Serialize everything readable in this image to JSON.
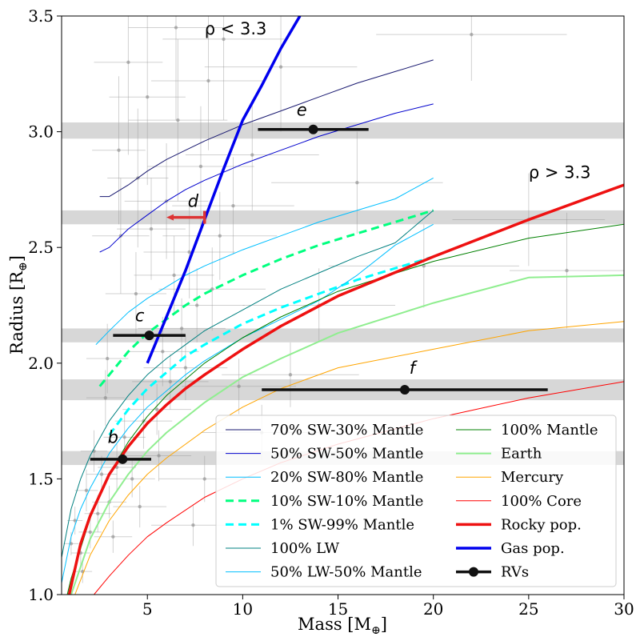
{
  "chart_data": {
    "type": "line",
    "xlabel": "Mass [M",
    "xlabel_sub": "⊕",
    "xlabel_end": "]",
    "ylabel": "Radius [R",
    "ylabel_sub": "⊕",
    "ylabel_end": "]",
    "xlim": [
      0.5,
      30
    ],
    "ylim": [
      1.0,
      3.5
    ],
    "xticks": [
      5,
      10,
      15,
      20,
      25,
      30
    ],
    "yticks": [
      1.0,
      1.5,
      2.0,
      2.5,
      3.0,
      3.5
    ],
    "grid": false,
    "legend_position": "lower-right",
    "annotations": [
      {
        "text": "ρ < 3.3",
        "x": 8.0,
        "y": 3.42
      },
      {
        "text": "ρ > 3.3",
        "x": 25.0,
        "y": 2.8
      }
    ],
    "observed_radius_bands": [
      {
        "y_low": 2.97,
        "y_high": 3.04
      },
      {
        "y_low": 2.6,
        "y_high": 2.66
      },
      {
        "y_low": 2.09,
        "y_high": 2.15
      },
      {
        "y_low": 1.84,
        "y_high": 1.93
      },
      {
        "y_low": 1.56,
        "y_high": 1.62
      }
    ],
    "series": [
      {
        "name": "70% SW-30% Mantle",
        "color": "#191970",
        "width": 1,
        "dash": "",
        "x": [
          2.5,
          3,
          4,
          5,
          6,
          7,
          8,
          10,
          12,
          14,
          16,
          18,
          20
        ],
        "y": [
          2.72,
          2.72,
          2.77,
          2.83,
          2.88,
          2.92,
          2.96,
          3.03,
          3.09,
          3.15,
          3.21,
          3.26,
          3.31
        ]
      },
      {
        "name": "50% SW-50% Mantle",
        "color": "#0000cd",
        "width": 1,
        "dash": "",
        "x": [
          2.5,
          3,
          4,
          5,
          6,
          7,
          8,
          10,
          12,
          14,
          16,
          18,
          20
        ],
        "y": [
          2.48,
          2.5,
          2.58,
          2.64,
          2.7,
          2.75,
          2.79,
          2.86,
          2.92,
          2.98,
          3.03,
          3.08,
          3.12
        ]
      },
      {
        "name": "20% SW-80% Mantle",
        "color": "#00bfff",
        "width": 1,
        "dash": "",
        "x": [
          2.3,
          3,
          4,
          5,
          6,
          7,
          8,
          10,
          12,
          14,
          16,
          18,
          20
        ],
        "y": [
          2.08,
          2.14,
          2.22,
          2.28,
          2.33,
          2.38,
          2.42,
          2.49,
          2.55,
          2.61,
          2.66,
          2.71,
          2.8
        ]
      },
      {
        "name": "10% SW-10% Mantle",
        "color": "#00ff7f",
        "width": 3,
        "dash": "10,6",
        "x": [
          2.5,
          3,
          4,
          5,
          6,
          7,
          8,
          10,
          12,
          14,
          16,
          18,
          20
        ],
        "y": [
          1.9,
          1.95,
          2.05,
          2.13,
          2.19,
          2.25,
          2.3,
          2.38,
          2.45,
          2.51,
          2.56,
          2.61,
          2.66
        ]
      },
      {
        "name": "1% SW-99% Mantle",
        "color": "#00ffff",
        "width": 3,
        "dash": "10,6",
        "x": [
          3,
          4,
          5,
          6,
          7,
          8,
          10,
          12,
          14,
          16,
          18,
          20
        ],
        "y": [
          1.69,
          1.8,
          1.89,
          1.96,
          2.03,
          2.08,
          2.17,
          2.24,
          2.3,
          2.36,
          2.41,
          2.46
        ]
      },
      {
        "name": "100% LW",
        "color": "#008080",
        "width": 1,
        "dash": "",
        "x": [
          0.5,
          1,
          1.5,
          2,
          3,
          4,
          5,
          6,
          7,
          8,
          10,
          12,
          14,
          16,
          18,
          20
        ],
        "y": [
          1.16,
          1.37,
          1.5,
          1.6,
          1.75,
          1.86,
          1.95,
          2.02,
          2.08,
          2.14,
          2.23,
          2.32,
          2.39,
          2.46,
          2.52,
          2.66
        ]
      },
      {
        "name": "50% LW-50% Mantle",
        "color": "#00bfff",
        "width": 1,
        "dash": "",
        "x": [
          0.5,
          1,
          1.5,
          2,
          3,
          4,
          5,
          6,
          7,
          8,
          10,
          12,
          14,
          16,
          18,
          20
        ],
        "y": [
          1.05,
          1.25,
          1.37,
          1.46,
          1.61,
          1.72,
          1.81,
          1.88,
          1.95,
          2.01,
          2.11,
          2.19,
          2.27,
          2.38,
          2.51,
          2.6
        ]
      },
      {
        "name": "100% Mantle",
        "color": "#008000",
        "width": 1,
        "dash": "",
        "x": [
          0.8,
          1,
          2,
          3,
          4,
          5,
          6,
          8,
          10,
          12,
          15,
          20,
          25,
          30
        ],
        "y": [
          1.0,
          1.07,
          1.33,
          1.52,
          1.66,
          1.77,
          1.86,
          2.0,
          2.11,
          2.2,
          2.31,
          2.44,
          2.54,
          2.6
        ]
      },
      {
        "name": "Earth",
        "color": "#90ee90",
        "width": 2,
        "dash": "",
        "x": [
          1.0,
          2,
          3,
          4,
          5,
          6,
          8,
          10,
          12,
          15,
          20,
          25,
          30
        ],
        "y": [
          1.0,
          1.24,
          1.4,
          1.52,
          1.62,
          1.7,
          1.83,
          1.94,
          2.02,
          2.13,
          2.26,
          2.37,
          2.38
        ]
      },
      {
        "name": "Mercury",
        "color": "#ffa500",
        "width": 1,
        "dash": "",
        "x": [
          1.2,
          2,
          3,
          4,
          5,
          6,
          8,
          10,
          12,
          15,
          20,
          25,
          30
        ],
        "y": [
          1.0,
          1.17,
          1.32,
          1.43,
          1.52,
          1.59,
          1.71,
          1.81,
          1.89,
          1.98,
          2.06,
          2.14,
          2.18
        ]
      },
      {
        "name": "100% Core",
        "color": "#ff0000",
        "width": 1,
        "dash": "",
        "x": [
          2.2,
          3,
          4,
          5,
          6,
          8,
          10,
          12,
          15,
          20,
          25,
          30
        ],
        "y": [
          1.0,
          1.08,
          1.17,
          1.25,
          1.31,
          1.42,
          1.5,
          1.57,
          1.65,
          1.76,
          1.85,
          1.92
        ]
      },
      {
        "name": "Rocky pop.",
        "color": "#ee1111",
        "width": 3.5,
        "dash": "",
        "x": [
          0.9,
          1.5,
          2,
          3,
          4,
          5,
          6,
          7,
          8,
          10,
          12,
          15,
          20,
          25,
          30
        ],
        "y": [
          1.0,
          1.22,
          1.34,
          1.52,
          1.64,
          1.74,
          1.82,
          1.89,
          1.95,
          2.06,
          2.16,
          2.29,
          2.46,
          2.62,
          2.77
        ]
      },
      {
        "name": "Gas pop.",
        "color": "#0000ee",
        "width": 3.5,
        "dash": "",
        "x": [
          5.0,
          6.0,
          7.0,
          8.0,
          9.0,
          10.0,
          11.0,
          12.0,
          13.0
        ],
        "y": [
          2.0,
          2.2,
          2.4,
          2.62,
          2.84,
          3.05,
          3.2,
          3.36,
          3.5
        ]
      }
    ],
    "rv_points": [
      {
        "label": "b",
        "x": 3.7,
        "xerr_low": 2.0,
        "xerr_high": 5.2,
        "y": 1.585,
        "label_dx": -0.5,
        "label_dy": 0.07
      },
      {
        "label": "c",
        "x": 5.1,
        "xerr_low": 3.2,
        "xerr_high": 7.0,
        "y": 2.12,
        "label_dx": -0.5,
        "label_dy": 0.06
      },
      {
        "label": "e",
        "x": 13.7,
        "xerr_low": 10.8,
        "xerr_high": 16.6,
        "y": 3.01,
        "label_dx": -0.6,
        "label_dy": 0.06
      },
      {
        "label": "f",
        "x": 18.5,
        "xerr_low": 11.0,
        "xerr_high": 26.0,
        "y": 1.885,
        "label_dx": 0.4,
        "label_dy": 0.07
      }
    ],
    "upper_limit": {
      "label": "d",
      "x": 8.0,
      "x_arrow_to": 6.0,
      "y": 2.63,
      "color": "#dd3333"
    },
    "rv_legend": "RVs",
    "rv_legend_color": "#111111",
    "background_sample": [
      {
        "x": 1.5,
        "y": 1.18,
        "ex": 0.5,
        "ey": 0.06
      },
      {
        "x": 2.0,
        "y": 1.27,
        "ex": 0.6,
        "ey": 0.07
      },
      {
        "x": 2.4,
        "y": 1.35,
        "ex": 0.7,
        "ey": 0.08
      },
      {
        "x": 1.8,
        "y": 1.45,
        "ex": 0.6,
        "ey": 0.09
      },
      {
        "x": 3.0,
        "y": 1.4,
        "ex": 0.9,
        "ey": 0.07
      },
      {
        "x": 2.6,
        "y": 1.52,
        "ex": 0.8,
        "ey": 0.08
      },
      {
        "x": 3.4,
        "y": 1.55,
        "ex": 1.0,
        "ey": 0.1
      },
      {
        "x": 4.2,
        "y": 1.5,
        "ex": 1.2,
        "ey": 0.08
      },
      {
        "x": 1.2,
        "y": 1.32,
        "ex": 0.4,
        "ey": 0.06
      },
      {
        "x": 2.2,
        "y": 1.62,
        "ex": 0.7,
        "ey": 0.09
      },
      {
        "x": 3.8,
        "y": 1.68,
        "ex": 1.1,
        "ey": 0.1
      },
      {
        "x": 4.8,
        "y": 1.75,
        "ex": 1.5,
        "ey": 0.12
      },
      {
        "x": 5.5,
        "y": 1.8,
        "ex": 1.8,
        "ey": 0.11
      },
      {
        "x": 6.2,
        "y": 1.92,
        "ex": 2.0,
        "ey": 0.12
      },
      {
        "x": 7.0,
        "y": 1.98,
        "ex": 2.2,
        "ey": 0.14
      },
      {
        "x": 5.8,
        "y": 2.05,
        "ex": 1.9,
        "ey": 0.15
      },
      {
        "x": 6.8,
        "y": 2.15,
        "ex": 2.3,
        "ey": 0.13
      },
      {
        "x": 7.6,
        "y": 2.25,
        "ex": 2.5,
        "ey": 0.16
      },
      {
        "x": 8.4,
        "y": 2.32,
        "ex": 2.8,
        "ey": 0.18
      },
      {
        "x": 6.4,
        "y": 2.38,
        "ex": 2.1,
        "ey": 0.17
      },
      {
        "x": 7.2,
        "y": 2.48,
        "ex": 2.4,
        "ey": 0.2
      },
      {
        "x": 5.2,
        "y": 2.58,
        "ex": 1.8,
        "ey": 0.22
      },
      {
        "x": 8.8,
        "y": 2.55,
        "ex": 3.0,
        "ey": 0.19
      },
      {
        "x": 6.0,
        "y": 2.7,
        "ex": 2.2,
        "ey": 0.25
      },
      {
        "x": 9.5,
        "y": 2.68,
        "ex": 3.2,
        "ey": 0.21
      },
      {
        "x": 4.5,
        "y": 2.8,
        "ex": 1.6,
        "ey": 0.3
      },
      {
        "x": 7.8,
        "y": 2.85,
        "ex": 2.8,
        "ey": 0.26
      },
      {
        "x": 3.5,
        "y": 2.92,
        "ex": 1.4,
        "ey": 0.32
      },
      {
        "x": 10.5,
        "y": 2.9,
        "ex": 3.5,
        "ey": 0.24
      },
      {
        "x": 6.6,
        "y": 3.05,
        "ex": 2.6,
        "ey": 0.35
      },
      {
        "x": 5.0,
        "y": 3.15,
        "ex": 2.0,
        "ey": 0.38
      },
      {
        "x": 8.2,
        "y": 3.22,
        "ex": 3.0,
        "ey": 0.3
      },
      {
        "x": 4.0,
        "y": 3.3,
        "ex": 1.8,
        "ey": 0.4
      },
      {
        "x": 12.0,
        "y": 3.28,
        "ex": 4.0,
        "ey": 0.28
      },
      {
        "x": 9.0,
        "y": 3.4,
        "ex": 3.2,
        "ey": 0.35
      },
      {
        "x": 6.5,
        "y": 3.45,
        "ex": 2.5,
        "ey": 0.4
      },
      {
        "x": 22.0,
        "y": 3.42,
        "ex": 5.0,
        "ey": 0.2
      },
      {
        "x": 16.0,
        "y": 2.78,
        "ex": 4.5,
        "ey": 0.22
      },
      {
        "x": 19.5,
        "y": 2.42,
        "ex": 5.0,
        "ey": 0.18
      },
      {
        "x": 25.0,
        "y": 2.62,
        "ex": 4.0,
        "ey": 0.2
      },
      {
        "x": 27.0,
        "y": 2.4,
        "ex": 3.0,
        "ey": 0.25
      },
      {
        "x": 14.0,
        "y": 2.25,
        "ex": 4.0,
        "ey": 0.16
      },
      {
        "x": 12.5,
        "y": 1.95,
        "ex": 3.6,
        "ey": 0.14
      },
      {
        "x": 11.0,
        "y": 1.7,
        "ex": 3.2,
        "ey": 0.12
      },
      {
        "x": 2.8,
        "y": 1.85,
        "ex": 1.0,
        "ey": 0.12
      },
      {
        "x": 1.6,
        "y": 1.1,
        "ex": 0.5,
        "ey": 0.05
      },
      {
        "x": 3.2,
        "y": 1.25,
        "ex": 1.0,
        "ey": 0.07
      },
      {
        "x": 4.6,
        "y": 1.38,
        "ex": 1.4,
        "ey": 0.09
      },
      {
        "x": 5.6,
        "y": 1.6,
        "ex": 1.7,
        "ey": 0.11
      },
      {
        "x": 2.9,
        "y": 2.02,
        "ex": 1.1,
        "ey": 0.15
      },
      {
        "x": 4.4,
        "y": 2.3,
        "ex": 1.6,
        "ey": 0.18
      },
      {
        "x": 3.6,
        "y": 2.55,
        "ex": 1.5,
        "ey": 0.25
      },
      {
        "x": 8.0,
        "y": 1.5,
        "ex": 2.4,
        "ey": 0.1
      },
      {
        "x": 9.8,
        "y": 1.9,
        "ex": 3.0,
        "ey": 0.12
      },
      {
        "x": 7.4,
        "y": 1.3,
        "ex": 2.2,
        "ey": 0.09
      },
      {
        "x": 1.0,
        "y": 1.22,
        "ex": 0.4,
        "ey": 0.05
      }
    ]
  }
}
